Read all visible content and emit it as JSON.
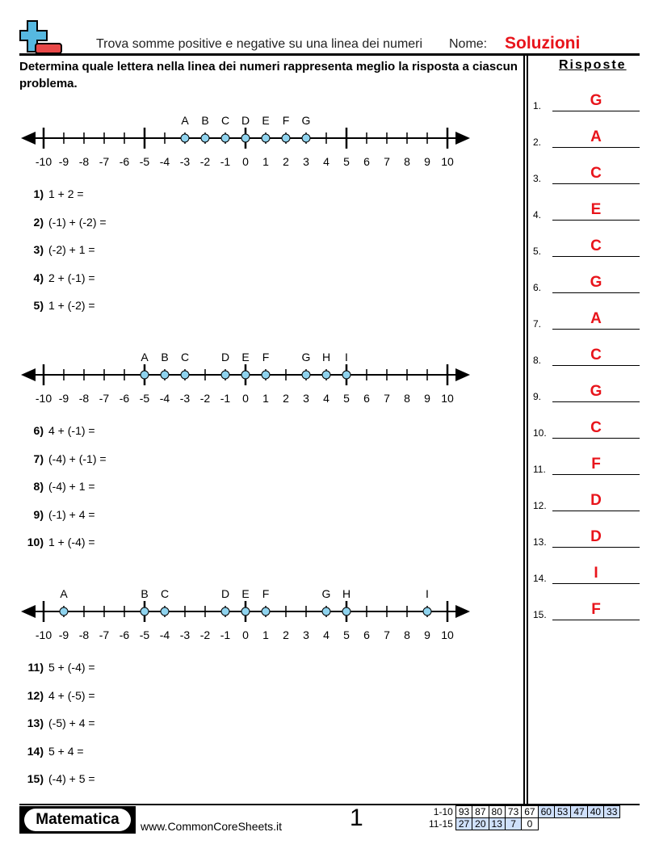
{
  "header": {
    "title": "Trova somme positive e negative su una linea dei numeri",
    "name_label": "Nome:",
    "name_value": "Soluzioni",
    "logo_icon": "plus-minus-icon"
  },
  "instructions": "Determina quale lettera nella linea dei numeri rappresenta meglio la risposta a ciascun problema.",
  "answers_title": "Risposte",
  "answers": [
    {
      "n": "1.",
      "v": "G"
    },
    {
      "n": "2.",
      "v": "A"
    },
    {
      "n": "3.",
      "v": "C"
    },
    {
      "n": "4.",
      "v": "E"
    },
    {
      "n": "5.",
      "v": "C"
    },
    {
      "n": "6.",
      "v": "G"
    },
    {
      "n": "7.",
      "v": "A"
    },
    {
      "n": "8.",
      "v": "C"
    },
    {
      "n": "9.",
      "v": "G"
    },
    {
      "n": "10.",
      "v": "C"
    },
    {
      "n": "11.",
      "v": "F"
    },
    {
      "n": "12.",
      "v": "D"
    },
    {
      "n": "13.",
      "v": "D"
    },
    {
      "n": "14.",
      "v": "I"
    },
    {
      "n": "15.",
      "v": "F"
    }
  ],
  "sections": [
    {
      "number_line": {
        "min": -10,
        "max": 10,
        "points": [
          [
            "A",
            -3
          ],
          [
            "B",
            -2
          ],
          [
            "C",
            -1
          ],
          [
            "D",
            0
          ],
          [
            "E",
            1
          ],
          [
            "F",
            2
          ],
          [
            "G",
            3
          ]
        ]
      },
      "problems": [
        {
          "n": "1)",
          "q": "1 + 2 ="
        },
        {
          "n": "2)",
          "q": "(-1) + (-2) ="
        },
        {
          "n": "3)",
          "q": "(-2) + 1 ="
        },
        {
          "n": "4)",
          "q": "2 + (-1) ="
        },
        {
          "n": "5)",
          "q": "1 + (-2) ="
        }
      ]
    },
    {
      "number_line": {
        "min": -10,
        "max": 10,
        "points": [
          [
            "A",
            -5
          ],
          [
            "B",
            -4
          ],
          [
            "C",
            -3
          ],
          [
            "D",
            -1
          ],
          [
            "E",
            0
          ],
          [
            "F",
            1
          ],
          [
            "G",
            3
          ],
          [
            "H",
            4
          ],
          [
            "I",
            5
          ]
        ]
      },
      "problems": [
        {
          "n": "6)",
          "q": "4 + (-1) ="
        },
        {
          "n": "7)",
          "q": "(-4) + (-1) ="
        },
        {
          "n": "8)",
          "q": "(-4) + 1 ="
        },
        {
          "n": "9)",
          "q": "(-1) + 4 ="
        },
        {
          "n": "10)",
          "q": "1 + (-4) ="
        }
      ]
    },
    {
      "number_line": {
        "min": -10,
        "max": 10,
        "points": [
          [
            "A",
            -9
          ],
          [
            "B",
            -5
          ],
          [
            "C",
            -4
          ],
          [
            "D",
            -1
          ],
          [
            "E",
            0
          ],
          [
            "F",
            1
          ],
          [
            "G",
            4
          ],
          [
            "H",
            5
          ],
          [
            "I",
            9
          ]
        ]
      },
      "problems": [
        {
          "n": "11)",
          "q": "5 + (-4) ="
        },
        {
          "n": "12)",
          "q": "4 + (-5) ="
        },
        {
          "n": "13)",
          "q": "(-5) + 4 ="
        },
        {
          "n": "14)",
          "q": "5 + 4 ="
        },
        {
          "n": "15)",
          "q": "(-4) + 5 ="
        }
      ]
    }
  ],
  "footer": {
    "logo": "Matematica",
    "url": "www.CommonCoreSheets.it",
    "page": "1",
    "score_rows": [
      {
        "label": "1-10",
        "values": [
          "93",
          "87",
          "80",
          "73",
          "67",
          "60",
          "53",
          "47",
          "40",
          "33"
        ]
      },
      {
        "label": "11-15",
        "values": [
          "27",
          "20",
          "13",
          "7",
          "0"
        ]
      }
    ]
  },
  "colors": {
    "accent": "#e8141b",
    "point_fill": "#8fd3ee",
    "score_fill": "#cfe0fb"
  }
}
